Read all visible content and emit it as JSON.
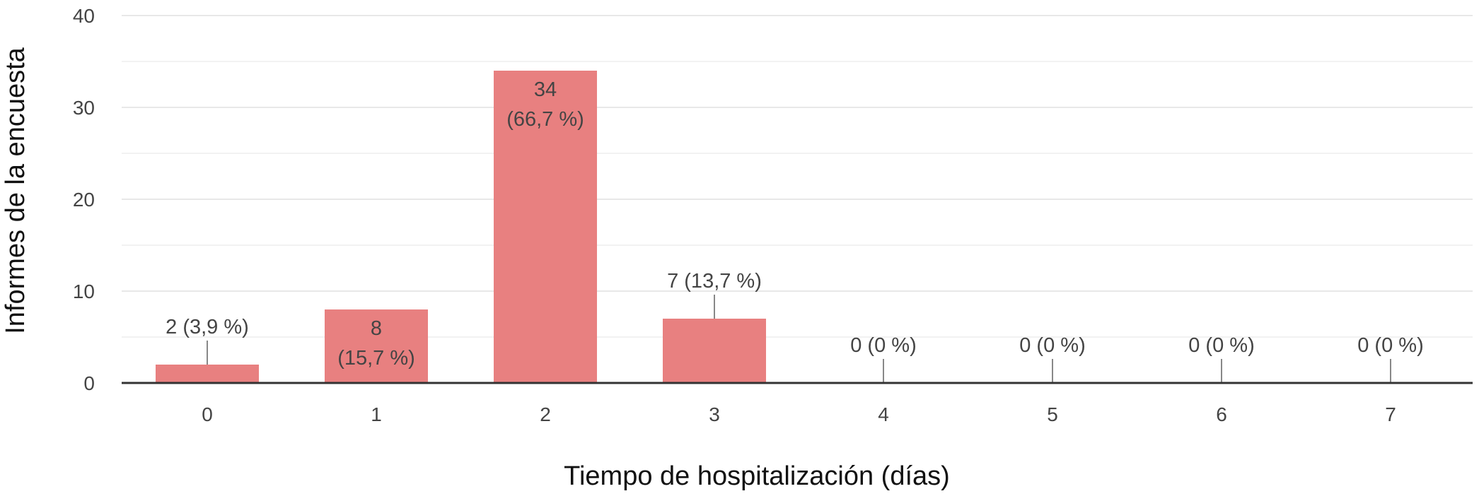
{
  "chart_data": {
    "type": "bar",
    "xlabel": "Tiempo de hospitalización (días)",
    "ylabel": "Informes de la encuesta",
    "categories": [
      "0",
      "1",
      "2",
      "3",
      "4",
      "5",
      "6",
      "7"
    ],
    "values": [
      2,
      8,
      34,
      7,
      0,
      0,
      0,
      0
    ],
    "data_labels": [
      [
        "2 (3,9 %)"
      ],
      [
        "8",
        "(15,7 %)"
      ],
      [
        "34",
        "(66,7 %)"
      ],
      [
        "7 (13,7 %)"
      ],
      [
        "0 (0 %)"
      ],
      [
        "0 (0 %)"
      ],
      [
        "0 (0 %)"
      ],
      [
        "0 (0 %)"
      ]
    ],
    "label_position": [
      "outside",
      "inside",
      "inside",
      "outside",
      "outside",
      "outside",
      "outside",
      "outside"
    ],
    "yticks": [
      0,
      10,
      20,
      30,
      40
    ],
    "ylim": [
      0,
      40
    ],
    "grid": true,
    "legend": "none",
    "colors": {
      "bar": "#e88080",
      "grid": "#e8e8e8",
      "axis": "#333333",
      "leader": "#888888"
    }
  }
}
